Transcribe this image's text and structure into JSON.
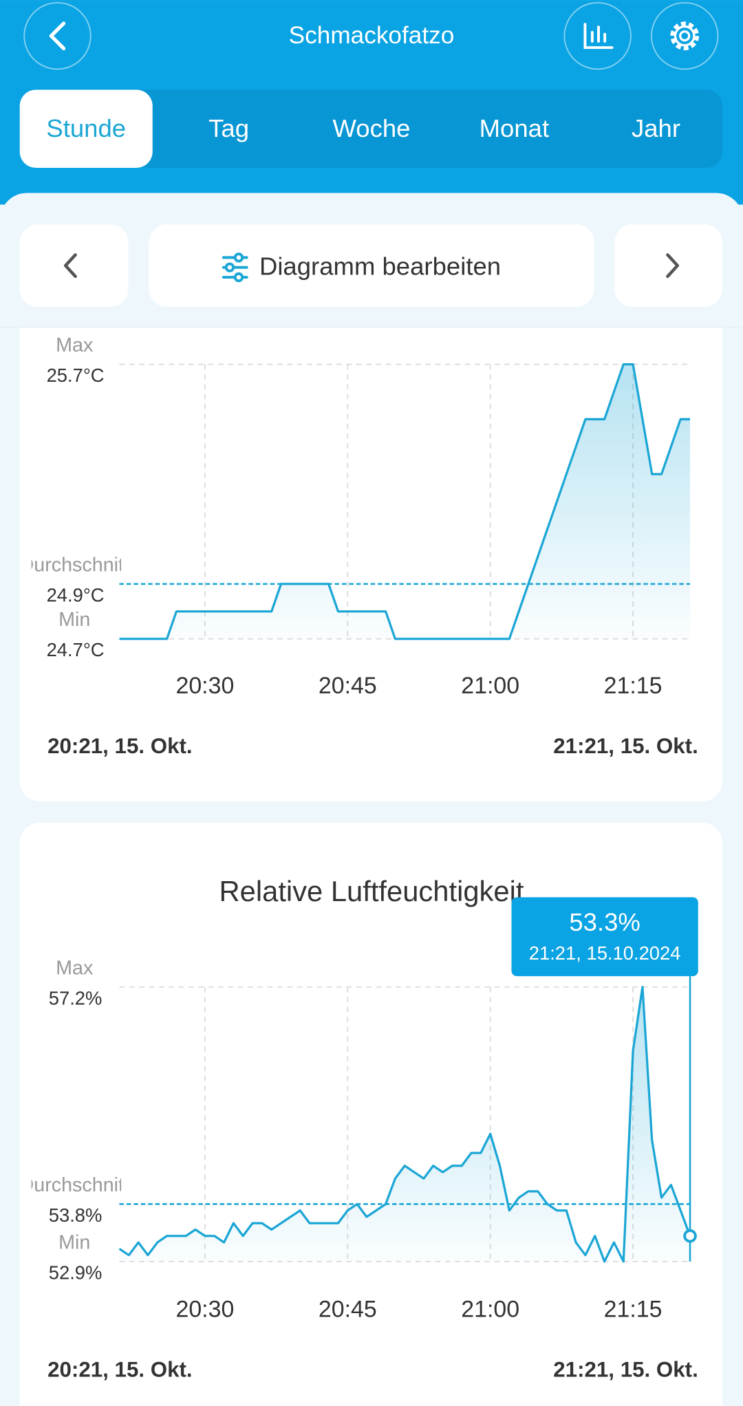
{
  "header": {
    "title": "Schmackofatzo"
  },
  "tabs": [
    {
      "label": "Stunde",
      "selected": true
    },
    {
      "label": "Tag",
      "selected": false
    },
    {
      "label": "Woche",
      "selected": false
    },
    {
      "label": "Monat",
      "selected": false
    },
    {
      "label": "Jahr",
      "selected": false
    }
  ],
  "toolbar": {
    "label": "Diagramm bearbeiten"
  },
  "chart_data": [
    {
      "type": "line",
      "x": [
        "20:21",
        "20:22",
        "20:23",
        "20:24",
        "20:25",
        "20:26",
        "20:27",
        "20:28",
        "20:29",
        "20:30",
        "20:31",
        "20:32",
        "20:33",
        "20:34",
        "20:35",
        "20:36",
        "20:37",
        "20:38",
        "20:39",
        "20:40",
        "20:41",
        "20:42",
        "20:43",
        "20:44",
        "20:45",
        "20:46",
        "20:47",
        "20:48",
        "20:49",
        "20:50",
        "20:51",
        "20:52",
        "20:53",
        "20:54",
        "20:55",
        "20:56",
        "20:57",
        "20:58",
        "20:59",
        "21:00",
        "21:01",
        "21:02",
        "21:03",
        "21:04",
        "21:05",
        "21:06",
        "21:07",
        "21:08",
        "21:09",
        "21:10",
        "21:11",
        "21:12",
        "21:13",
        "21:14",
        "21:15",
        "21:16",
        "21:17",
        "21:18",
        "21:19",
        "21:20",
        "21:21"
      ],
      "values": [
        24.7,
        24.7,
        24.7,
        24.7,
        24.7,
        24.7,
        24.8,
        24.8,
        24.8,
        24.8,
        24.8,
        24.8,
        24.8,
        24.8,
        24.8,
        24.8,
        24.8,
        24.9,
        24.9,
        24.9,
        24.9,
        24.9,
        24.9,
        24.8,
        24.8,
        24.8,
        24.8,
        24.8,
        24.8,
        24.7,
        24.7,
        24.7,
        24.7,
        24.7,
        24.7,
        24.7,
        24.7,
        24.7,
        24.7,
        24.7,
        24.7,
        24.7,
        24.8,
        24.9,
        25.0,
        25.1,
        25.2,
        25.3,
        25.4,
        25.5,
        25.5,
        25.5,
        25.6,
        25.7,
        25.7,
        25.5,
        25.3,
        25.3,
        25.4,
        25.5,
        25.5
      ],
      "color": "#1ba6d5",
      "xticks": [
        "20:30",
        "20:45",
        "21:00",
        "21:15"
      ],
      "ylim": [
        24.7,
        25.7
      ],
      "yticks": [
        {
          "value": 24.7,
          "label": "24.7°C"
        },
        {
          "value": 24.9,
          "label": "24.9°C"
        },
        {
          "value": 25.7,
          "label": "25.7°C"
        }
      ],
      "ytick_names": [
        "Min",
        "Durchschnitt",
        "Max"
      ],
      "range_labels": [
        "20:21,  15. Okt.",
        "21:21,  15. Okt."
      ]
    },
    {
      "type": "line",
      "title": "Relative Luftfeuchtigkeit",
      "x": [
        "20:21",
        "20:22",
        "20:23",
        "20:24",
        "20:25",
        "20:26",
        "20:27",
        "20:28",
        "20:29",
        "20:30",
        "20:31",
        "20:32",
        "20:33",
        "20:34",
        "20:35",
        "20:36",
        "20:37",
        "20:38",
        "20:39",
        "20:40",
        "20:41",
        "20:42",
        "20:43",
        "20:44",
        "20:45",
        "20:46",
        "20:47",
        "20:48",
        "20:49",
        "20:50",
        "20:51",
        "20:52",
        "20:53",
        "20:54",
        "20:55",
        "20:56",
        "20:57",
        "20:58",
        "20:59",
        "21:00",
        "21:01",
        "21:02",
        "21:03",
        "21:04",
        "21:05",
        "21:06",
        "21:07",
        "21:08",
        "21:09",
        "21:10",
        "21:11",
        "21:12",
        "21:13",
        "21:14",
        "21:15",
        "21:16",
        "21:17",
        "21:18",
        "21:19",
        "21:20",
        "21:21"
      ],
      "values": [
        53.1,
        53.0,
        53.2,
        53.0,
        53.2,
        53.3,
        53.3,
        53.3,
        53.4,
        53.3,
        53.3,
        53.2,
        53.5,
        53.3,
        53.5,
        53.5,
        53.4,
        53.5,
        53.6,
        53.7,
        53.5,
        53.5,
        53.5,
        53.5,
        53.7,
        53.8,
        53.6,
        53.7,
        53.8,
        54.2,
        54.4,
        54.3,
        54.2,
        54.4,
        54.3,
        54.4,
        54.4,
        54.6,
        54.6,
        54.9,
        54.4,
        53.7,
        53.9,
        54.0,
        54.0,
        53.8,
        53.7,
        53.7,
        53.2,
        53.0,
        53.3,
        52.9,
        53.2,
        52.9,
        56.2,
        57.2,
        54.8,
        53.9,
        54.1,
        53.7,
        53.3
      ],
      "color": "#1ba6d5",
      "xticks": [
        "20:30",
        "20:45",
        "21:00",
        "21:15"
      ],
      "ylim": [
        52.9,
        57.2
      ],
      "yticks": [
        {
          "value": 52.9,
          "label": "52.9%"
        },
        {
          "value": 53.8,
          "label": "53.8%"
        },
        {
          "value": 57.2,
          "label": "57.2%"
        }
      ],
      "ytick_names": [
        "Min",
        "Durchschnitt",
        "Max"
      ],
      "range_labels": [
        "20:21,  15. Okt.",
        "21:21,  15. Okt."
      ],
      "tooltip": {
        "label": "53.3%",
        "date": "21:21,  15.10.2024"
      }
    }
  ]
}
